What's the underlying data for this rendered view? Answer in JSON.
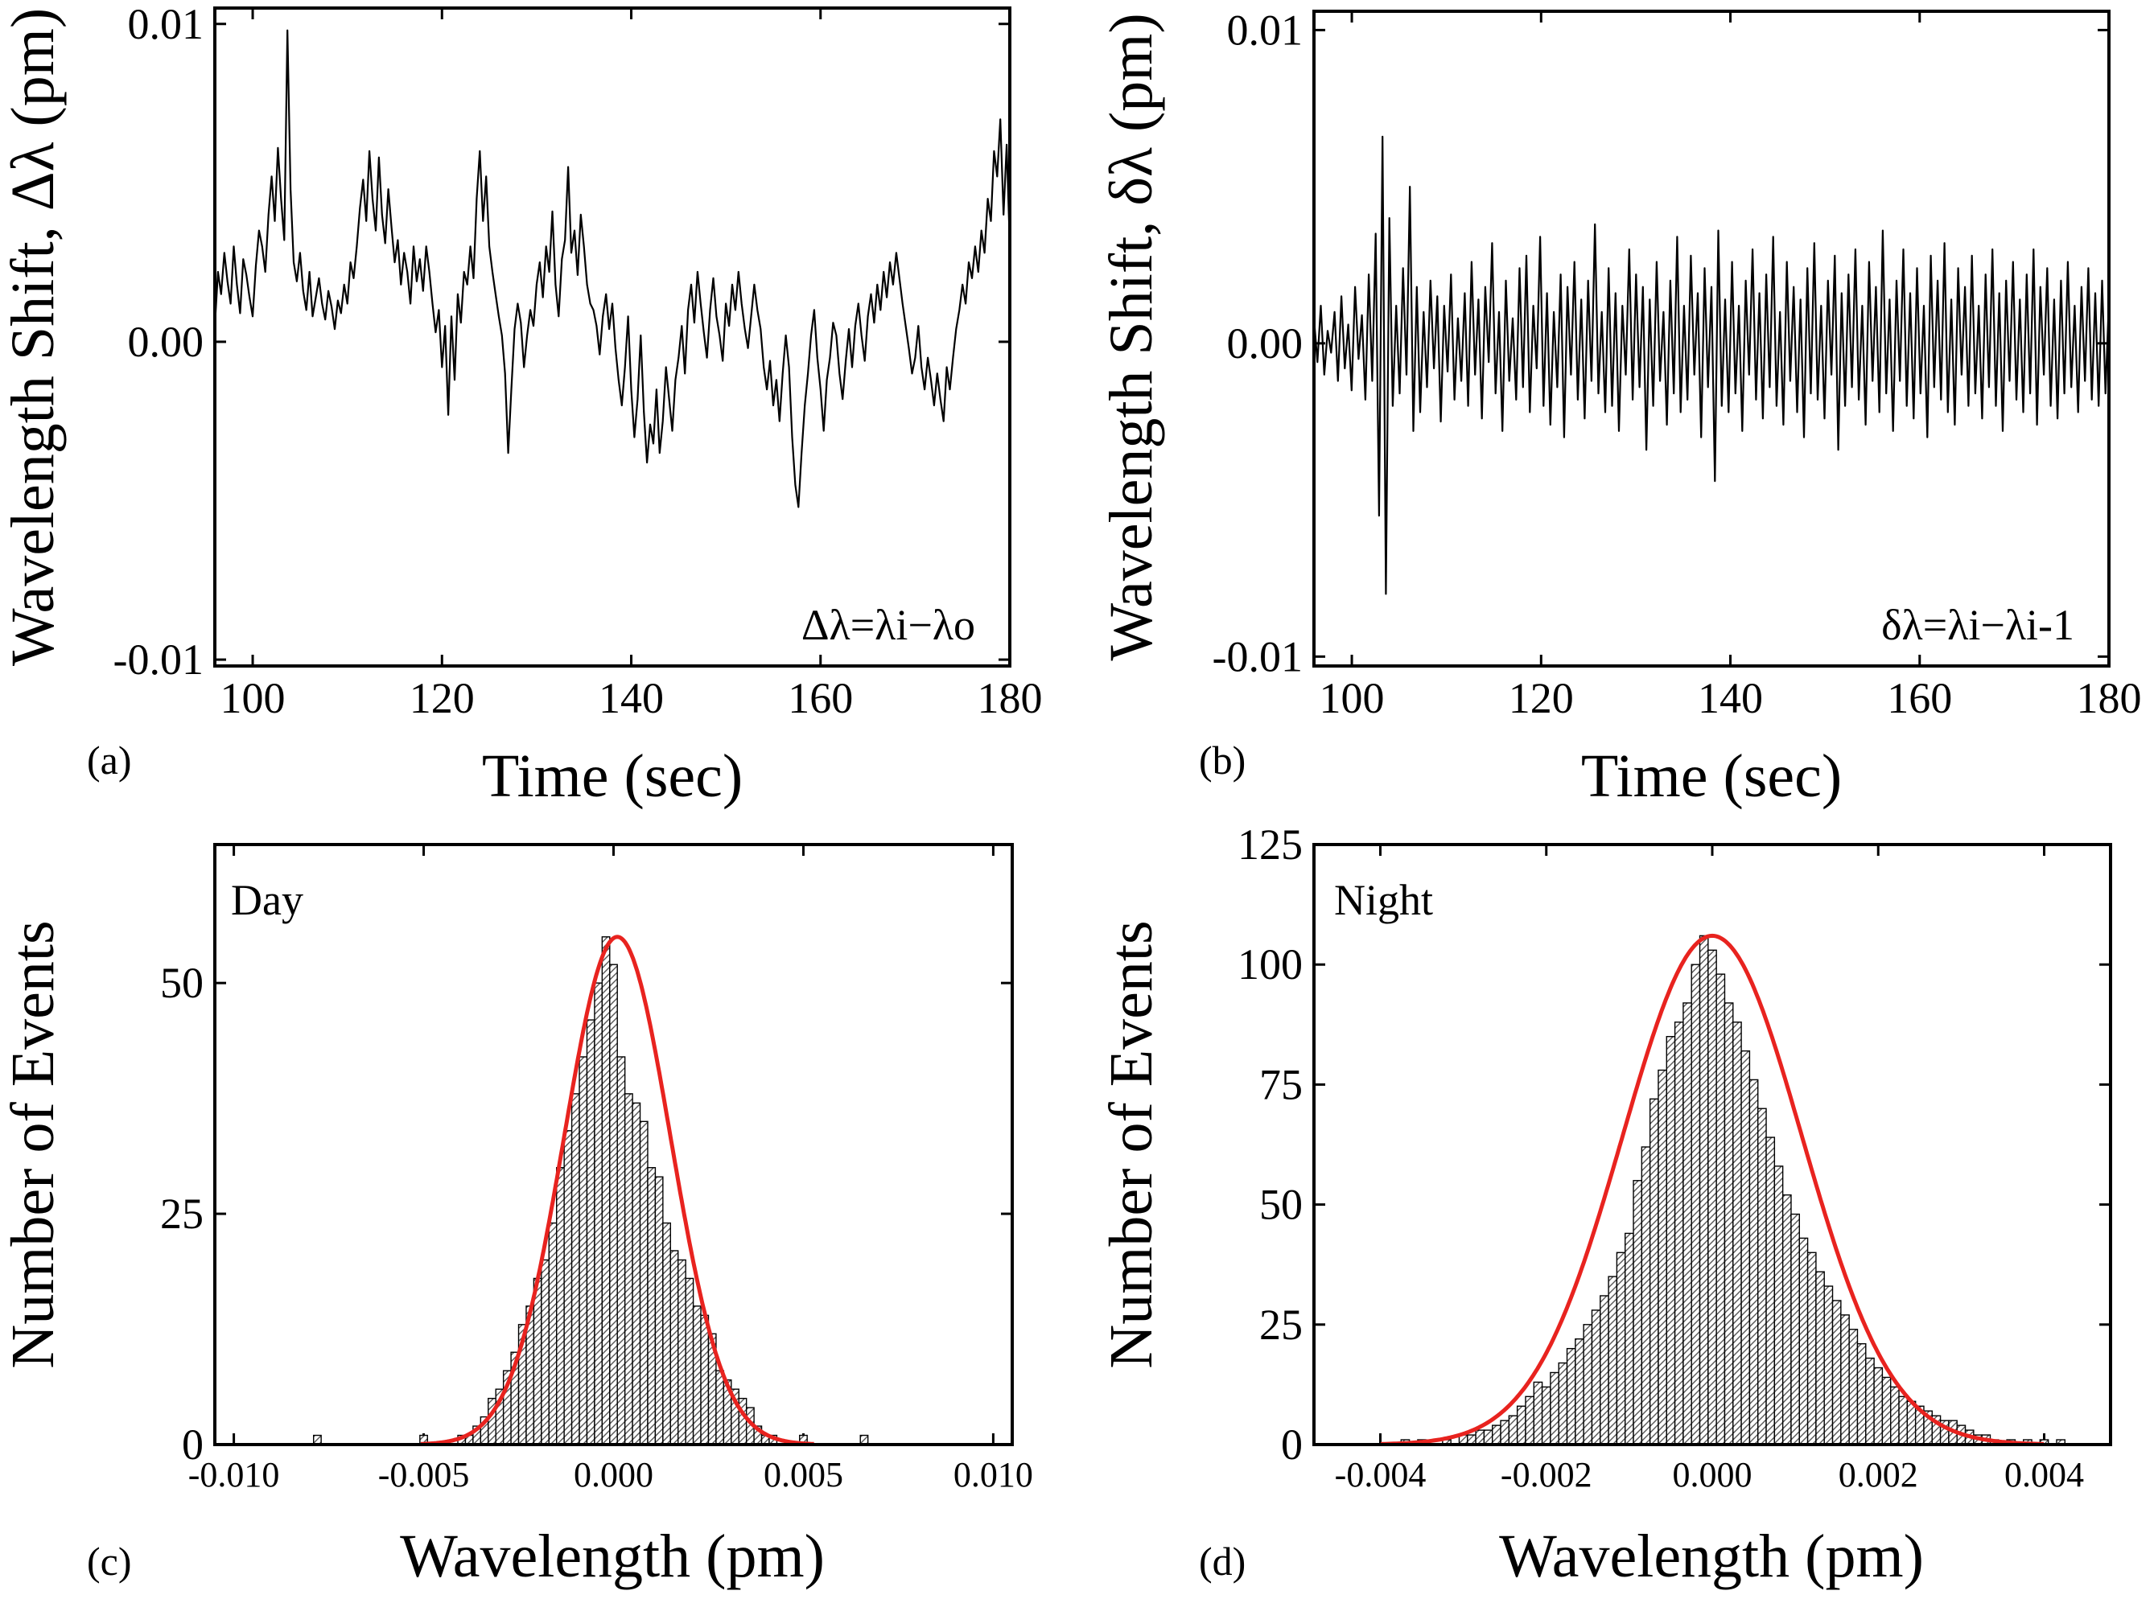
{
  "colors": {
    "axis": "#000000",
    "trace": "#000000",
    "fit": "#e8231f",
    "bar_fill": "#ffffff"
  },
  "chart_data": [
    {
      "id": "a",
      "type": "line",
      "panel_label": "(a)",
      "xlabel": "Time (sec)",
      "ylabel": "Wavelength Shift, Δλ (pm)",
      "annotation": "Δλ=λi−λo",
      "xlim": [
        96,
        180
      ],
      "ylim": [
        -0.0102,
        0.0105
      ],
      "xticks": [
        100,
        120,
        140,
        160,
        180
      ],
      "xtick_labels": [
        "100",
        "120",
        "140",
        "160",
        "180"
      ],
      "yticks": [
        -0.01,
        0.0,
        0.01
      ],
      "ytick_labels": [
        "-0.01",
        "0.00",
        "0.01"
      ],
      "series": [
        {
          "name": "Δλ",
          "x_range": [
            96,
            180
          ],
          "values": [
            0.0005,
            0.0022,
            0.0015,
            0.0028,
            0.0019,
            0.0012,
            0.003,
            0.0018,
            0.0009,
            0.0026,
            0.0021,
            0.0014,
            0.0008,
            0.0024,
            0.0035,
            0.003,
            0.0022,
            0.004,
            0.0052,
            0.0038,
            0.0061,
            0.0045,
            0.0032,
            0.0098,
            0.0048,
            0.0025,
            0.0019,
            0.0028,
            0.0016,
            0.001,
            0.0022,
            0.0008,
            0.0014,
            0.002,
            0.0012,
            0.0007,
            0.0016,
            0.0011,
            0.0004,
            0.0013,
            0.0009,
            0.0018,
            0.0012,
            0.0025,
            0.002,
            0.003,
            0.0042,
            0.0051,
            0.0038,
            0.006,
            0.0045,
            0.0035,
            0.0058,
            0.004,
            0.0031,
            0.0048,
            0.0036,
            0.0025,
            0.0032,
            0.0018,
            0.0028,
            0.0022,
            0.0012,
            0.003,
            0.0019,
            0.0026,
            0.0016,
            0.003,
            0.0022,
            0.0012,
            0.0003,
            0.001,
            -0.0008,
            0.0005,
            -0.0023,
            0.0008,
            -0.0012,
            0.0015,
            0.0006,
            0.0022,
            0.0018,
            0.003,
            0.002,
            0.0045,
            0.006,
            0.0038,
            0.0052,
            0.003,
            0.0022,
            0.0015,
            0.0008,
            0.0002,
            -0.001,
            -0.0035,
            -0.0015,
            0.0004,
            0.0012,
            0.0006,
            -0.0008,
            0.0002,
            0.001,
            0.0005,
            0.0018,
            0.0025,
            0.0014,
            0.003,
            0.0022,
            0.0041,
            0.0018,
            0.0008,
            0.0026,
            0.0032,
            0.0055,
            0.0028,
            0.0035,
            0.0021,
            0.004,
            0.003,
            0.0018,
            0.0012,
            0.001,
            0.0005,
            -0.0004,
            0.0008,
            0.0015,
            0.0004,
            0.0012,
            -0.0002,
            -0.0012,
            -0.002,
            -0.0008,
            0.0008,
            -0.0015,
            -0.003,
            -0.0018,
            0.0002,
            -0.0022,
            -0.0038,
            -0.0026,
            -0.0032,
            -0.0015,
            -0.0035,
            -0.0025,
            -0.0008,
            -0.0018,
            -0.0028,
            -0.0012,
            -0.0005,
            0.0005,
            -0.001,
            0.001,
            0.0018,
            0.0006,
            0.0022,
            0.0012,
            0.0003,
            -0.0005,
            0.001,
            0.002,
            0.0008,
            0.0002,
            -0.0006,
            0.0012,
            0.0005,
            0.0018,
            0.001,
            0.0022,
            0.0012,
            0.0004,
            -0.0002,
            0.0008,
            0.0018,
            0.001,
            0.0004,
            -0.0008,
            -0.0015,
            -0.0006,
            -0.002,
            -0.0012,
            -0.0025,
            -0.001,
            0.0002,
            -0.0008,
            -0.003,
            -0.0045,
            -0.0052,
            -0.0035,
            -0.002,
            -0.001,
            0.0002,
            0.001,
            -0.0005,
            -0.0015,
            -0.0028,
            -0.0012,
            -0.0005,
            0.0006,
            0.0002,
            -0.001,
            -0.0018,
            -0.0006,
            0.0004,
            -0.0008,
            0.0005,
            0.0012,
            0.0002,
            -0.0006,
            0.0008,
            0.0015,
            0.0006,
            0.0018,
            0.001,
            0.0022,
            0.0014,
            0.0025,
            0.0018,
            0.0028,
            0.002,
            0.0012,
            0.0005,
            -0.0002,
            -0.001,
            -0.0005,
            0.0005,
            -0.0008,
            -0.0015,
            -0.0005,
            -0.0012,
            -0.002,
            -0.001,
            -0.0018,
            -0.0025,
            -0.0008,
            -0.0015,
            -0.0005,
            0.0004,
            0.001,
            0.0018,
            0.0012,
            0.0025,
            0.002,
            0.003,
            0.0022,
            0.0035,
            0.0028,
            0.0045,
            0.0038,
            0.006,
            0.0052,
            0.007,
            0.004,
            0.0062,
            0.003
          ]
        }
      ]
    },
    {
      "id": "b",
      "type": "line",
      "panel_label": "(b)",
      "xlabel": "Time (sec)",
      "ylabel": "Wavelength Shift, δλ (pm)",
      "annotation": "δλ=λi−λi-1",
      "xlim": [
        96,
        180
      ],
      "ylim": [
        -0.0103,
        0.0106
      ],
      "xticks": [
        100,
        120,
        140,
        160,
        180
      ],
      "xtick_labels": [
        "100",
        "120",
        "140",
        "160",
        "180"
      ],
      "yticks": [
        -0.01,
        0.0,
        0.01
      ],
      "ytick_labels": [
        "-0.01",
        "0.00",
        "0.01"
      ],
      "series": [
        {
          "name": "δλ",
          "x_range": [
            96,
            180
          ],
          "values": [
            0.0008,
            -0.0006,
            0.0012,
            -0.001,
            0.0004,
            -0.0003,
            0.001,
            -0.0012,
            0.0015,
            -0.0008,
            0.0006,
            -0.0015,
            0.0018,
            -0.0005,
            0.0009,
            -0.0018,
            0.0022,
            -0.0012,
            0.0035,
            -0.0055,
            0.0066,
            -0.008,
            0.004,
            -0.002,
            0.0012,
            -0.0016,
            0.0024,
            -0.001,
            0.005,
            -0.0028,
            0.0018,
            -0.0022,
            0.001,
            -0.0014,
            0.002,
            -0.0008,
            0.0015,
            -0.0025,
            0.0012,
            -0.0009,
            0.0022,
            -0.0018,
            0.0008,
            -0.0012,
            0.0016,
            -0.002,
            0.0026,
            -0.001,
            0.0014,
            -0.0024,
            0.0018,
            -0.0006,
            0.0032,
            -0.0016,
            0.001,
            -0.0028,
            0.002,
            -0.0012,
            0.0008,
            -0.0018,
            0.0024,
            -0.0014,
            0.0028,
            -0.0022,
            0.0012,
            -0.0008,
            0.0034,
            -0.002,
            0.0016,
            -0.0026,
            0.001,
            -0.0014,
            0.0022,
            -0.003,
            0.0018,
            -0.001,
            0.0026,
            -0.0018,
            0.0014,
            -0.0024,
            0.002,
            -0.0012,
            0.0038,
            -0.0016,
            0.001,
            -0.0022,
            0.0024,
            -0.002,
            0.0016,
            -0.0028,
            0.0012,
            -0.001,
            0.003,
            -0.0018,
            0.0022,
            -0.0014,
            0.0018,
            -0.0034,
            0.0014,
            -0.002,
            0.0026,
            -0.0012,
            0.001,
            -0.0026,
            0.002,
            -0.0016,
            0.0034,
            -0.0022,
            0.0012,
            -0.0018,
            0.0028,
            -0.001,
            0.0016,
            -0.003,
            0.0024,
            -0.0014,
            0.0018,
            -0.0044,
            0.0036,
            -0.002,
            0.0014,
            -0.0022,
            0.0026,
            -0.0016,
            0.0012,
            -0.0028,
            0.002,
            -0.001,
            0.003,
            -0.0018,
            0.0016,
            -0.0024,
            0.0022,
            -0.0014,
            0.0034,
            -0.002,
            0.001,
            -0.0026,
            0.0026,
            -0.0012,
            0.0018,
            -0.0022,
            0.0014,
            -0.003,
            0.0024,
            -0.0016,
            0.0032,
            -0.0018,
            0.0012,
            -0.0024,
            0.002,
            -0.001,
            0.0028,
            -0.0034,
            0.0016,
            -0.002,
            0.0022,
            -0.0014,
            0.003,
            -0.0018,
            0.0012,
            -0.0026,
            0.0026,
            -0.0012,
            0.0018,
            -0.0022,
            0.0036,
            -0.0016,
            0.0014,
            -0.0028,
            0.002,
            -0.0012,
            0.003,
            -0.002,
            0.0016,
            -0.0024,
            0.0024,
            -0.0016,
            0.0012,
            -0.003,
            0.0028,
            -0.0014,
            0.002,
            -0.0018,
            0.0032,
            -0.0022,
            0.0014,
            -0.0026,
            0.0024,
            -0.001,
            0.0018,
            -0.002,
            0.0028,
            -0.0016,
            0.0012,
            -0.0024,
            0.0022,
            -0.0014,
            0.003,
            -0.002,
            0.0016,
            -0.0028,
            0.002,
            -0.0012,
            0.0026,
            -0.0018,
            0.0014,
            -0.0022,
            0.0022,
            -0.0016,
            0.003,
            -0.0026,
            0.0018,
            -0.001,
            0.0024,
            -0.002,
            0.0014,
            -0.0024,
            0.002,
            -0.0016,
            0.0026,
            -0.0014,
            0.0012,
            -0.0022,
            0.0018,
            -0.0012,
            0.0024,
            -0.0018,
            0.0016,
            -0.002,
            0.002,
            -0.0016,
            0.0014
          ]
        }
      ]
    },
    {
      "id": "c",
      "type": "histogram",
      "panel_label": "(c)",
      "inset_label": "Day",
      "xlabel": "Wavelength (pm)",
      "ylabel": "Number of Events",
      "xlim": [
        -0.0105,
        0.0105
      ],
      "ylim": [
        0,
        65
      ],
      "xticks": [
        -0.01,
        -0.005,
        0.0,
        0.005,
        0.01
      ],
      "xtick_labels": [
        "-0.010",
        "-0.005",
        "0.000",
        "0.005",
        "0.010"
      ],
      "yticks": [
        0,
        25,
        50
      ],
      "ytick_labels": [
        "0",
        "25",
        "50"
      ],
      "bin_width": 0.0002,
      "bins": [
        [
          -0.0078,
          1
        ],
        [
          -0.005,
          1
        ],
        [
          -0.004,
          1
        ],
        [
          -0.0038,
          1
        ],
        [
          -0.0036,
          2
        ],
        [
          -0.0034,
          3
        ],
        [
          -0.0032,
          5
        ],
        [
          -0.003,
          6
        ],
        [
          -0.0028,
          8
        ],
        [
          -0.0026,
          10
        ],
        [
          -0.0024,
          13
        ],
        [
          -0.0022,
          15
        ],
        [
          -0.002,
          18
        ],
        [
          -0.0018,
          20
        ],
        [
          -0.0016,
          24
        ],
        [
          -0.0014,
          30
        ],
        [
          -0.0012,
          34
        ],
        [
          -0.001,
          38
        ],
        [
          -0.0008,
          42
        ],
        [
          -0.0006,
          46
        ],
        [
          -0.0004,
          50
        ],
        [
          -0.0002,
          55
        ],
        [
          0.0,
          52
        ],
        [
          0.0002,
          42
        ],
        [
          0.0004,
          38
        ],
        [
          0.0006,
          37
        ],
        [
          0.0008,
          35
        ],
        [
          0.001,
          30
        ],
        [
          0.0012,
          29
        ],
        [
          0.0014,
          24
        ],
        [
          0.0016,
          21
        ],
        [
          0.0018,
          20
        ],
        [
          0.002,
          18
        ],
        [
          0.0022,
          15
        ],
        [
          0.0024,
          14
        ],
        [
          0.0026,
          12
        ],
        [
          0.0028,
          8
        ],
        [
          0.003,
          7
        ],
        [
          0.0032,
          6
        ],
        [
          0.0034,
          5
        ],
        [
          0.0036,
          4
        ],
        [
          0.0038,
          2
        ],
        [
          0.004,
          1
        ],
        [
          0.0042,
          1
        ],
        [
          0.005,
          1
        ],
        [
          0.0066,
          1
        ]
      ],
      "fit": {
        "type": "gaussian",
        "amplitude": 55,
        "mean": 0.0001,
        "sigma": 0.0014
      }
    },
    {
      "id": "d",
      "type": "histogram",
      "panel_label": "(d)",
      "inset_label": "Night",
      "xlabel": "Wavelength (pm)",
      "ylabel": "Number of Events",
      "xlim": [
        -0.0048,
        0.0048
      ],
      "ylim": [
        0,
        125
      ],
      "xticks": [
        -0.004,
        -0.002,
        0.0,
        0.002,
        0.004
      ],
      "xtick_labels": [
        "-0.004",
        "-0.002",
        "0.000",
        "0.002",
        "0.004"
      ],
      "yticks": [
        0,
        25,
        50,
        75,
        100,
        125
      ],
      "ytick_labels": [
        "0",
        "25",
        "50",
        "75",
        "100",
        "125"
      ],
      "bin_width": 0.0001,
      "bins": [
        [
          -0.0037,
          1
        ],
        [
          -0.0035,
          1
        ],
        [
          -0.0032,
          1
        ],
        [
          -0.003,
          2
        ],
        [
          -0.0029,
          2
        ],
        [
          -0.0028,
          3
        ],
        [
          -0.0027,
          3
        ],
        [
          -0.0026,
          4
        ],
        [
          -0.0025,
          5
        ],
        [
          -0.0024,
          6
        ],
        [
          -0.0023,
          8
        ],
        [
          -0.0022,
          10
        ],
        [
          -0.0021,
          13
        ],
        [
          -0.002,
          12
        ],
        [
          -0.0019,
          15
        ],
        [
          -0.0018,
          17
        ],
        [
          -0.0017,
          20
        ],
        [
          -0.0016,
          22
        ],
        [
          -0.0015,
          25
        ],
        [
          -0.0014,
          28
        ],
        [
          -0.0013,
          31
        ],
        [
          -0.0012,
          35
        ],
        [
          -0.0011,
          40
        ],
        [
          -0.001,
          44
        ],
        [
          -0.0009,
          55
        ],
        [
          -0.0008,
          62
        ],
        [
          -0.0007,
          72
        ],
        [
          -0.0006,
          78
        ],
        [
          -0.0005,
          85
        ],
        [
          -0.0004,
          88
        ],
        [
          -0.0003,
          92
        ],
        [
          -0.0002,
          100
        ],
        [
          -0.0001,
          106
        ],
        [
          0.0,
          103
        ],
        [
          0.0001,
          98
        ],
        [
          0.0002,
          92
        ],
        [
          0.0003,
          88
        ],
        [
          0.0004,
          82
        ],
        [
          0.0005,
          76
        ],
        [
          0.0006,
          70
        ],
        [
          0.0007,
          64
        ],
        [
          0.0008,
          58
        ],
        [
          0.0009,
          52
        ],
        [
          0.001,
          48
        ],
        [
          0.0011,
          43
        ],
        [
          0.0012,
          40
        ],
        [
          0.0013,
          36
        ],
        [
          0.0014,
          33
        ],
        [
          0.0015,
          30
        ],
        [
          0.0016,
          27
        ],
        [
          0.0017,
          24
        ],
        [
          0.0018,
          21
        ],
        [
          0.0019,
          18
        ],
        [
          0.002,
          16
        ],
        [
          0.0021,
          14
        ],
        [
          0.0022,
          12
        ],
        [
          0.0023,
          10
        ],
        [
          0.0024,
          9
        ],
        [
          0.0025,
          8
        ],
        [
          0.0026,
          7
        ],
        [
          0.0027,
          6
        ],
        [
          0.0028,
          5
        ],
        [
          0.0029,
          5
        ],
        [
          0.003,
          4
        ],
        [
          0.0031,
          3
        ],
        [
          0.0032,
          2
        ],
        [
          0.0033,
          2
        ],
        [
          0.0034,
          1
        ],
        [
          0.0036,
          1
        ],
        [
          0.0038,
          1
        ],
        [
          0.004,
          1
        ],
        [
          0.0042,
          1
        ]
      ],
      "fit": {
        "type": "gaussian",
        "amplitude": 106,
        "mean": 0.0,
        "sigma": 0.00108
      }
    }
  ]
}
